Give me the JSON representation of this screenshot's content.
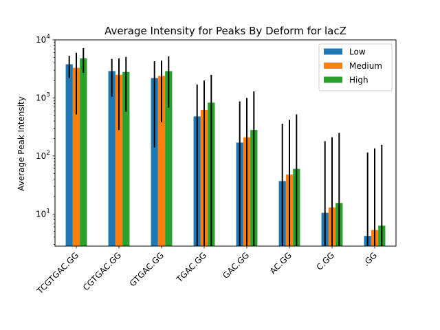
{
  "chart_data": {
    "type": "bar",
    "title": "Average Intensity for Peaks By Deform for lacZ",
    "xlabel": "",
    "ylabel": "Average Peak Intensity",
    "yscale": "log",
    "ylim": [
      2.8,
      10000
    ],
    "y_ticks": [
      {
        "value": 10,
        "base": "10",
        "exp": "1"
      },
      {
        "value": 100,
        "base": "10",
        "exp": "2"
      },
      {
        "value": 1000,
        "base": "10",
        "exp": "3"
      },
      {
        "value": 10000,
        "base": "10",
        "exp": "4"
      }
    ],
    "categories": [
      "TCGTGAC.GG",
      "CGTGAC.GG",
      "GTGAC.GG",
      "TGAC.GG",
      "GAC.GG",
      "AC.GG",
      "C.GG",
      ".GG"
    ],
    "series": [
      {
        "name": "Low",
        "color": "#1f77b4",
        "values": [
          3800,
          2900,
          2200,
          480,
          170,
          37,
          10.5,
          4.2
        ],
        "error_low": [
          2200,
          1050,
          140,
          2.8,
          2.8,
          2.8,
          2.8,
          2.8
        ],
        "error_high": [
          5300,
          4700,
          4300,
          1700,
          870,
          360,
          180,
          115
        ]
      },
      {
        "name": "Medium",
        "color": "#ff7f0e",
        "values": [
          3300,
          2500,
          2400,
          620,
          210,
          48,
          13,
          5.3
        ],
        "error_low": [
          520,
          280,
          380,
          2.8,
          2.8,
          2.8,
          2.8,
          2.8
        ],
        "error_high": [
          6000,
          4800,
          4400,
          2000,
          1000,
          420,
          210,
          135
        ]
      },
      {
        "name": "High",
        "color": "#2ca02c",
        "values": [
          4800,
          2800,
          2900,
          830,
          280,
          60,
          15.5,
          6.3
        ],
        "error_low": [
          2700,
          580,
          680,
          2.8,
          2.8,
          2.8,
          2.8,
          2.8
        ],
        "error_high": [
          7200,
          5100,
          5200,
          2500,
          1300,
          520,
          250,
          155
        ]
      }
    ],
    "legend_position": "top-right",
    "grid": false
  }
}
